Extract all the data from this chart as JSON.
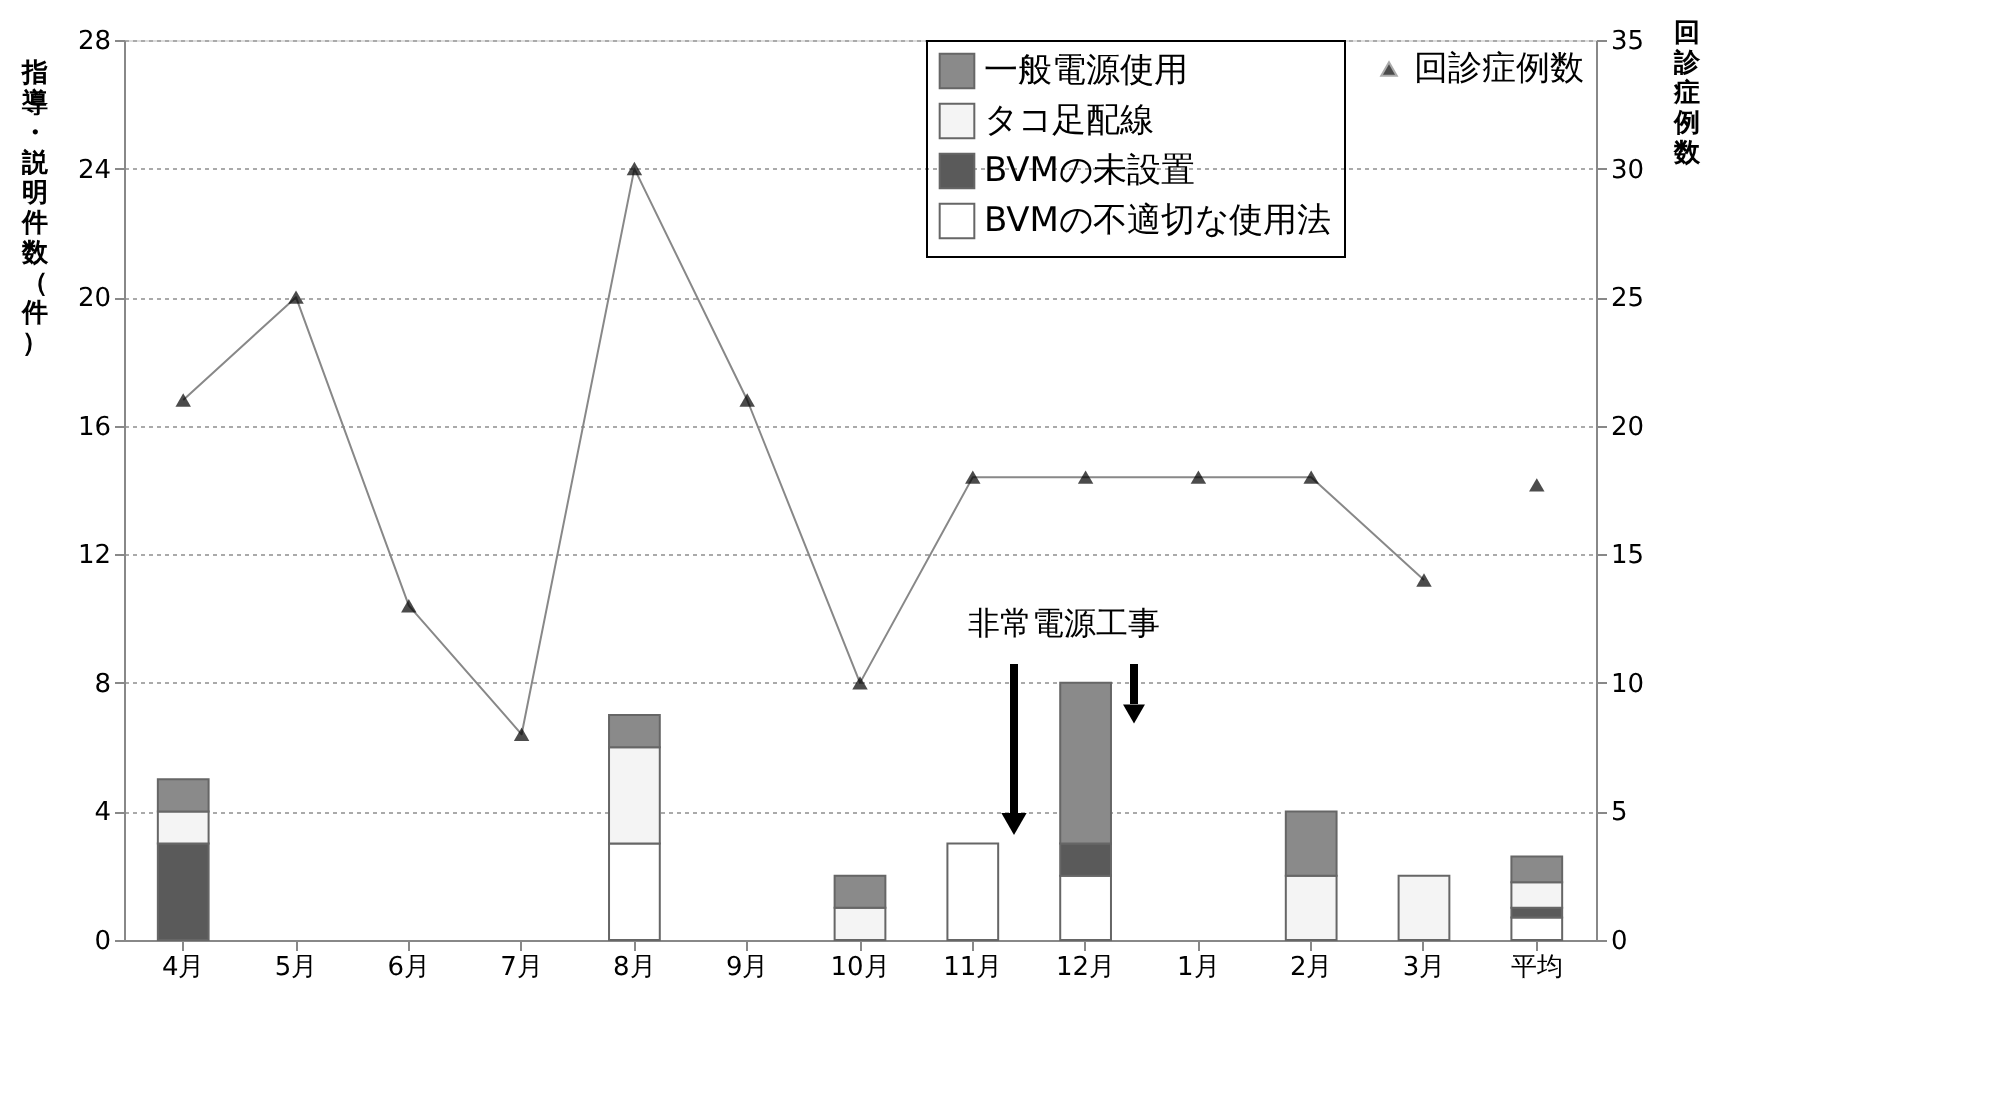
{
  "chart_data": {
    "type": "bar",
    "stacked": true,
    "categories": [
      "4月",
      "5月",
      "6月",
      "7月",
      "8月",
      "9月",
      "10月",
      "11月",
      "12月",
      "1月",
      "2月",
      "3月",
      "平均"
    ],
    "ylabel": "指導・説明件数（件）",
    "y2label": "回診症例数",
    "ylim": [
      0,
      28
    ],
    "yticks": [
      0,
      4,
      8,
      12,
      16,
      20,
      24,
      28
    ],
    "y2lim": [
      0,
      35
    ],
    "y2ticks": [
      0,
      5,
      10,
      15,
      20,
      25,
      30,
      35
    ],
    "grid": "y",
    "legend": "top right",
    "annotations": [
      "非常電源工事"
    ],
    "series": [
      {
        "name": "BVMの不適切な使用法",
        "color": "#ffffff",
        "values": [
          null,
          null,
          null,
          null,
          3,
          null,
          null,
          3,
          2,
          null,
          null,
          null,
          0.7
        ]
      },
      {
        "name": "BVMの未設置",
        "color": "#5a5a5a",
        "values": [
          3,
          null,
          null,
          null,
          null,
          null,
          null,
          null,
          1,
          null,
          null,
          null,
          0.3
        ]
      },
      {
        "name": "タコ足配線",
        "color": "#f4f4f4",
        "values": [
          1,
          null,
          null,
          null,
          3,
          null,
          1,
          null,
          null,
          null,
          2,
          2,
          0.8
        ]
      },
      {
        "name": "一般電源使用",
        "color": "#8a8a8a",
        "values": [
          1,
          null,
          null,
          null,
          1,
          null,
          1,
          null,
          5,
          null,
          2,
          null,
          0.8
        ]
      },
      {
        "name": "回診症例数",
        "type": "line",
        "axis": "y2",
        "color": "#000000",
        "marker": "triangle",
        "values": [
          21,
          25,
          13,
          8,
          30,
          21,
          10,
          18,
          18,
          18,
          18,
          14,
          null
        ]
      },
      {
        "type": "scatter",
        "axis": "y2",
        "color": "#000000",
        "marker": "triangle",
        "values": [
          null,
          null,
          null,
          null,
          null,
          null,
          null,
          null,
          null,
          null,
          null,
          null,
          17.7
        ]
      }
    ]
  }
}
